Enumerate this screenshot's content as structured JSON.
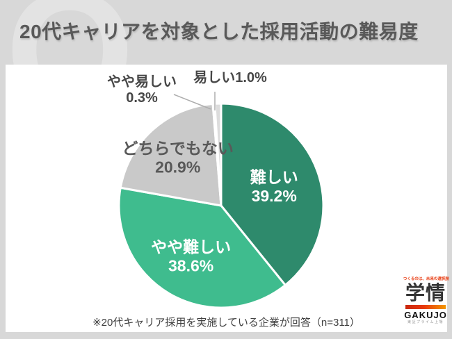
{
  "title": "20代キャリアを対象とした採用活動の難易度",
  "watermark": {
    "letter": "Q"
  },
  "colors": {
    "background": "#D8D8D8",
    "panel": "#FFFFFF",
    "title_text": "#595959",
    "slice_dark_green": "#2E8A6C",
    "slice_light_green": "#3FBC8E",
    "slice_gray": "#C9C9C9",
    "leader_line": "#ADADAD",
    "logo_red": "#E8380D"
  },
  "chart_data": {
    "type": "pie",
    "title": "20代キャリアを対象とした採用活動の難易度",
    "unit": "%",
    "start_angle": "12 o'clock, clockwise",
    "legend": "none (labels on/near slices)",
    "sample_size": 311,
    "slices": [
      {
        "label": "難しい",
        "value": 39.2,
        "value_label": "39.2%",
        "color": "#2E8A6C",
        "text_color": "#FFFFFF",
        "label_position": "inside"
      },
      {
        "label": "やや難しい",
        "value": 38.6,
        "value_label": "38.6%",
        "color": "#3FBC8E",
        "text_color": "#FFFFFF",
        "label_position": "inside"
      },
      {
        "label": "どちらでもない",
        "value": 20.9,
        "value_label": "20.9%",
        "color": "#C9C9C9",
        "text_color": "#595959",
        "label_position": "inside"
      },
      {
        "label": "やや易しい",
        "value": 0.3,
        "value_label": "0.3%",
        "color": "#C0C0C0",
        "text_color": "#474747",
        "label_position": "outside"
      },
      {
        "label": "易しい",
        "value": 1.0,
        "value_label": "1.0%",
        "color": "#DCDCDC",
        "text_color": "#474747",
        "label_position": "outside"
      }
    ],
    "note": "※20代キャリア採用を実施している企業が回答（n=311）"
  },
  "logo": {
    "tagline": "つくるのは、未来の選択肢",
    "kanji": "学情",
    "latin": "GAKUJO",
    "listing": "東証プライム上場"
  }
}
